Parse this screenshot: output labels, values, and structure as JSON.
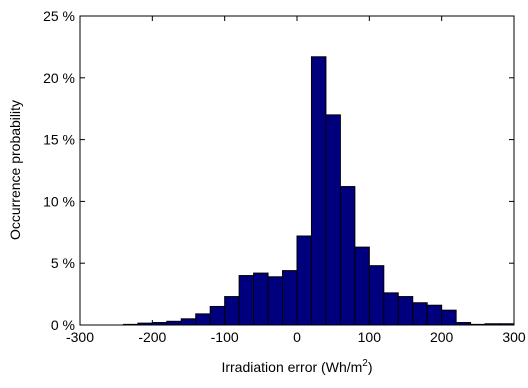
{
  "chart_data": {
    "type": "bar",
    "title": "",
    "xlabel": "Irradiation error (Wh/m",
    "xlabel_superscript": "2",
    "xlabel_suffix": ")",
    "ylabel": "Occurrence probability",
    "xlim": [
      -300,
      300
    ],
    "ylim": [
      0,
      25
    ],
    "grid": false,
    "legend": "none",
    "bar_color": "#00007f",
    "edge_color": "#000000",
    "bin_width": 20,
    "x_ticks": [
      -300,
      -200,
      -100,
      0,
      100,
      200,
      300
    ],
    "x_tick_labels": [
      "-300",
      "-200",
      "-100",
      "0",
      "100",
      "200",
      "300"
    ],
    "y_ticks": [
      0,
      5,
      10,
      15,
      20,
      25
    ],
    "y_tick_labels": [
      "0 %",
      "5 %",
      "10 %",
      "15 %",
      "20 %",
      "25 %"
    ],
    "bins": [
      {
        "x": -230,
        "value": 0.05
      },
      {
        "x": -210,
        "value": 0.15
      },
      {
        "x": -190,
        "value": 0.2
      },
      {
        "x": -170,
        "value": 0.3
      },
      {
        "x": -150,
        "value": 0.5
      },
      {
        "x": -130,
        "value": 0.9
      },
      {
        "x": -110,
        "value": 1.5
      },
      {
        "x": -90,
        "value": 2.3
      },
      {
        "x": -70,
        "value": 4.0
      },
      {
        "x": -50,
        "value": 4.2
      },
      {
        "x": -30,
        "value": 3.9
      },
      {
        "x": -10,
        "value": 4.4
      },
      {
        "x": 10,
        "value": 7.2
      },
      {
        "x": 30,
        "value": 21.7
      },
      {
        "x": 50,
        "value": 17.0
      },
      {
        "x": 70,
        "value": 11.2
      },
      {
        "x": 90,
        "value": 6.3
      },
      {
        "x": 110,
        "value": 4.8
      },
      {
        "x": 130,
        "value": 2.6
      },
      {
        "x": 150,
        "value": 2.3
      },
      {
        "x": 170,
        "value": 1.8
      },
      {
        "x": 190,
        "value": 1.6
      },
      {
        "x": 210,
        "value": 1.2
      },
      {
        "x": 230,
        "value": 0.2
      },
      {
        "x": 250,
        "value": 0.05
      },
      {
        "x": 270,
        "value": 0.1
      },
      {
        "x": 290,
        "value": 0.1
      }
    ]
  }
}
